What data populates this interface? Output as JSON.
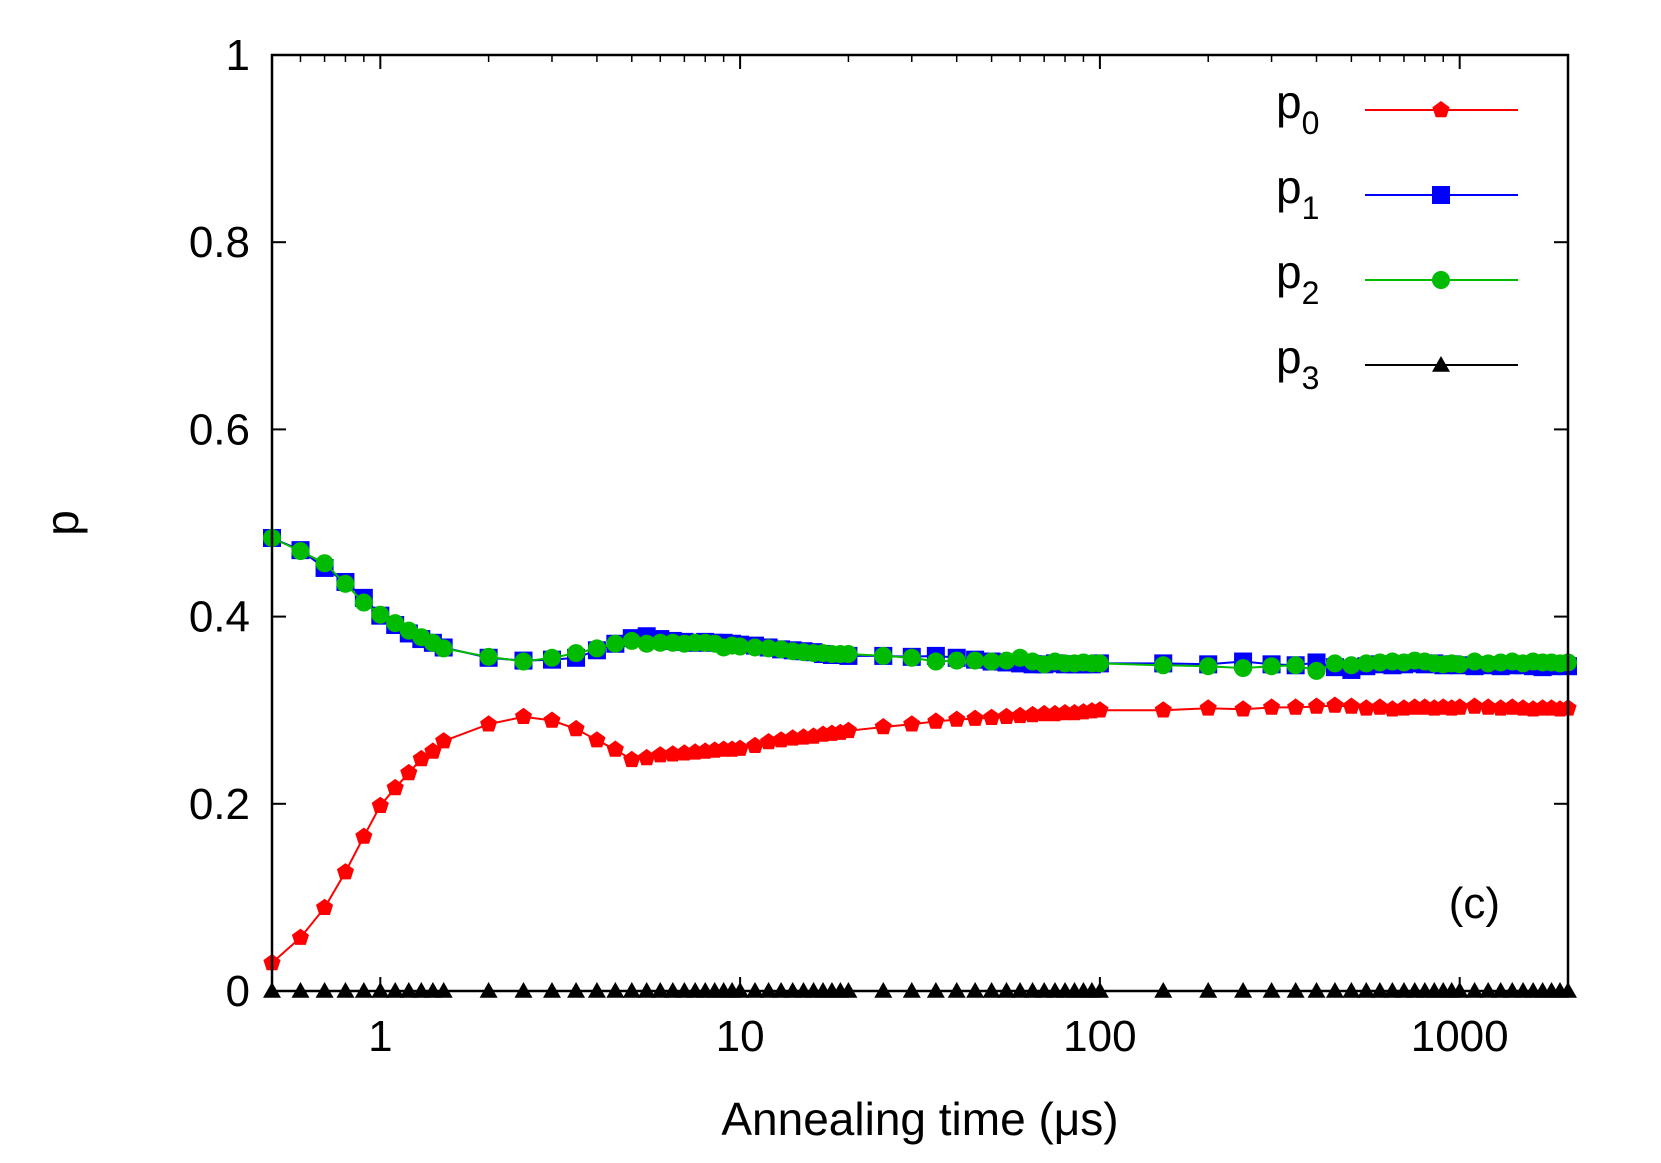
{
  "chart_data": {
    "type": "line",
    "xscale": "log",
    "xlabel": "Annealing time (μs)",
    "ylabel": "p",
    "xlim": [
      0.5,
      2000
    ],
    "ylim": [
      0,
      1
    ],
    "x_ticks": [
      1,
      10,
      100,
      1000
    ],
    "x_tick_labels": [
      "1",
      "10",
      "100",
      "1000"
    ],
    "y_ticks": [
      0,
      0.2,
      0.4,
      0.6,
      0.8,
      1
    ],
    "y_tick_labels": [
      "0",
      "0.2",
      "0.4",
      "0.6",
      "0.8",
      "1"
    ],
    "annotation": "(c)",
    "legend_position": "top-right",
    "grid": false,
    "x": [
      0.5,
      0.6,
      0.7,
      0.8,
      0.9,
      1.0,
      1.1,
      1.2,
      1.3,
      1.4,
      1.5,
      2,
      2.5,
      3,
      3.5,
      4,
      4.5,
      5,
      5.5,
      6,
      6.5,
      7,
      7.5,
      8,
      8.5,
      9,
      9.5,
      10,
      11,
      12,
      13,
      14,
      15,
      16,
      17,
      18,
      19,
      20,
      25,
      30,
      35,
      40,
      45,
      50,
      55,
      60,
      65,
      70,
      75,
      80,
      85,
      90,
      95,
      100,
      150,
      200,
      250,
      300,
      350,
      400,
      450,
      500,
      550,
      600,
      650,
      700,
      750,
      800,
      850,
      900,
      950,
      1000,
      1100,
      1200,
      1300,
      1400,
      1500,
      1600,
      1700,
      1800,
      1900,
      2000
    ],
    "series": [
      {
        "name": "p",
        "subscript": "0",
        "color": "#ff0000",
        "marker": "pentagon",
        "values": [
          0.03,
          0.057,
          0.089,
          0.127,
          0.165,
          0.198,
          0.217,
          0.233,
          0.248,
          0.256,
          0.267,
          0.285,
          0.293,
          0.289,
          0.28,
          0.268,
          0.258,
          0.247,
          0.249,
          0.252,
          0.253,
          0.254,
          0.255,
          0.256,
          0.257,
          0.258,
          0.258,
          0.259,
          0.262,
          0.266,
          0.268,
          0.27,
          0.271,
          0.272,
          0.274,
          0.275,
          0.276,
          0.278,
          0.282,
          0.285,
          0.288,
          0.29,
          0.291,
          0.292,
          0.293,
          0.294,
          0.295,
          0.296,
          0.296,
          0.297,
          0.297,
          0.298,
          0.299,
          0.3,
          0.3,
          0.302,
          0.301,
          0.303,
          0.303,
          0.304,
          0.305,
          0.304,
          0.302,
          0.303,
          0.301,
          0.302,
          0.303,
          0.303,
          0.302,
          0.303,
          0.302,
          0.303,
          0.304,
          0.303,
          0.302,
          0.303,
          0.302,
          0.301,
          0.302,
          0.302,
          0.301,
          0.302
        ]
      },
      {
        "name": "p",
        "subscript": "1",
        "color": "#0000ff",
        "marker": "square",
        "values": [
          0.484,
          0.471,
          0.452,
          0.437,
          0.42,
          0.401,
          0.391,
          0.382,
          0.376,
          0.372,
          0.367,
          0.356,
          0.353,
          0.354,
          0.356,
          0.364,
          0.371,
          0.377,
          0.379,
          0.376,
          0.374,
          0.373,
          0.372,
          0.373,
          0.372,
          0.372,
          0.371,
          0.37,
          0.369,
          0.367,
          0.365,
          0.364,
          0.363,
          0.362,
          0.36,
          0.359,
          0.359,
          0.358,
          0.358,
          0.357,
          0.358,
          0.356,
          0.354,
          0.352,
          0.351,
          0.35,
          0.349,
          0.349,
          0.35,
          0.349,
          0.349,
          0.349,
          0.349,
          0.35,
          0.35,
          0.349,
          0.352,
          0.349,
          0.348,
          0.351,
          0.346,
          0.343,
          0.347,
          0.349,
          0.348,
          0.349,
          0.35,
          0.349,
          0.35,
          0.348,
          0.349,
          0.348,
          0.347,
          0.348,
          0.347,
          0.348,
          0.348,
          0.347,
          0.346,
          0.347,
          0.348,
          0.347
        ]
      },
      {
        "name": "p",
        "subscript": "2",
        "color": "#00bb00",
        "marker": "circle",
        "values": [
          0.484,
          0.47,
          0.457,
          0.435,
          0.415,
          0.402,
          0.393,
          0.385,
          0.378,
          0.372,
          0.366,
          0.357,
          0.352,
          0.356,
          0.361,
          0.366,
          0.371,
          0.374,
          0.371,
          0.372,
          0.372,
          0.371,
          0.372,
          0.372,
          0.371,
          0.367,
          0.369,
          0.368,
          0.367,
          0.366,
          0.365,
          0.363,
          0.362,
          0.361,
          0.361,
          0.36,
          0.36,
          0.36,
          0.358,
          0.356,
          0.352,
          0.353,
          0.353,
          0.352,
          0.353,
          0.356,
          0.352,
          0.349,
          0.352,
          0.35,
          0.35,
          0.351,
          0.35,
          0.35,
          0.348,
          0.347,
          0.345,
          0.347,
          0.348,
          0.342,
          0.35,
          0.348,
          0.35,
          0.351,
          0.352,
          0.351,
          0.353,
          0.352,
          0.35,
          0.349,
          0.35,
          0.349,
          0.352,
          0.35,
          0.351,
          0.352,
          0.35,
          0.352,
          0.351,
          0.351,
          0.35,
          0.351
        ]
      },
      {
        "name": "p",
        "subscript": "3",
        "color": "#000000",
        "marker": "triangle",
        "values": [
          0,
          0,
          0,
          0,
          0,
          0,
          0,
          0,
          0,
          0,
          0,
          0,
          0,
          0,
          0,
          0,
          0,
          0,
          0,
          0,
          0,
          0,
          0,
          0,
          0,
          0,
          0,
          0,
          0,
          0,
          0,
          0,
          0,
          0,
          0,
          0,
          0,
          0,
          0,
          0,
          0,
          0,
          0,
          0,
          0,
          0,
          0,
          0,
          0,
          0,
          0,
          0,
          0,
          0,
          0,
          0,
          0,
          0,
          0,
          0,
          0,
          0,
          0,
          0,
          0,
          0,
          0,
          0,
          0,
          0,
          0,
          0,
          0,
          0,
          0,
          0,
          0,
          0,
          0,
          0,
          0,
          0
        ]
      }
    ]
  }
}
